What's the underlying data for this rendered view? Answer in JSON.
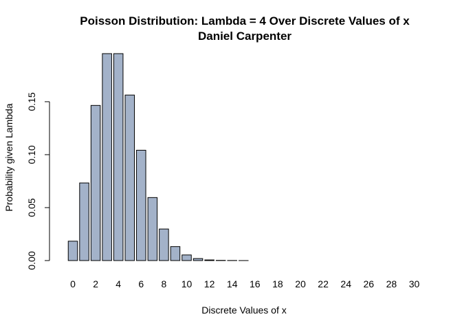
{
  "chart_data": {
    "type": "bar",
    "title": "Poisson Distribution: Lambda =  4 Over Discrete Values of x",
    "subtitle": "Daniel Carpenter",
    "xlabel": "Discrete Values of x",
    "ylabel": "Probability given Lambda",
    "categories": [
      "0",
      "1",
      "2",
      "3",
      "4",
      "5",
      "6",
      "7",
      "8",
      "9",
      "10",
      "11",
      "12",
      "13",
      "14",
      "15",
      "16",
      "17",
      "18",
      "19",
      "20",
      "21",
      "22",
      "23",
      "24",
      "25",
      "26",
      "27",
      "28",
      "29",
      "30"
    ],
    "x_tick_labels": [
      "0",
      "2",
      "4",
      "6",
      "8",
      "10",
      "12",
      "14",
      "16",
      "18",
      "20",
      "22",
      "24",
      "26",
      "28",
      "30"
    ],
    "values": [
      0.0183,
      0.0733,
      0.1465,
      0.1954,
      0.1954,
      0.1563,
      0.1042,
      0.0595,
      0.0298,
      0.0132,
      0.0053,
      0.0019,
      0.0006,
      0.0002,
      0.0001,
      2e-05,
      0.0,
      0.0,
      0.0,
      0.0,
      0.0,
      0.0,
      0.0,
      0.0,
      0.0,
      0.0,
      0.0,
      0.0,
      0.0,
      0.0,
      0.0
    ],
    "yticks": [
      0.0,
      0.05,
      0.1,
      0.15
    ],
    "y_tick_labels": [
      "0.00",
      "0.05",
      "0.10",
      "0.15"
    ],
    "ylim": [
      0,
      0.1954
    ],
    "grid": false,
    "legend": "none",
    "bar_color": "#a3b2c9"
  }
}
